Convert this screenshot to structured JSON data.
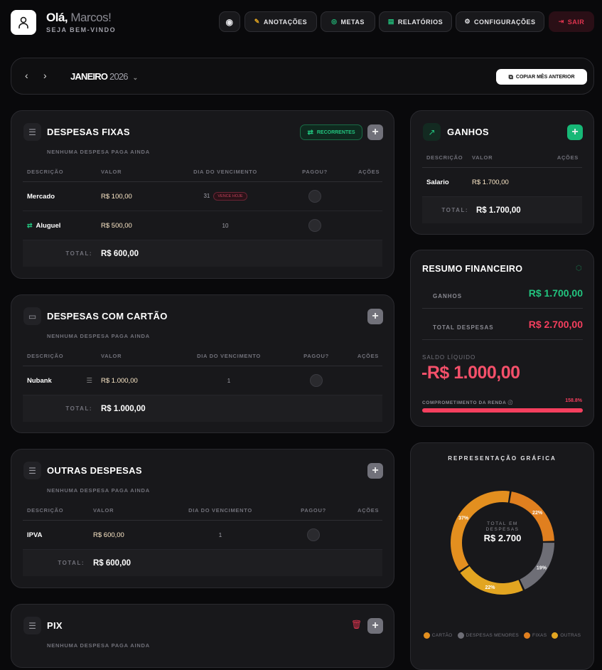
{
  "header": {
    "greeting": "Olá,",
    "name": "Marcos!",
    "welcome": "SEJA BEM-VINDO",
    "nav": [
      {
        "label": "ANOTAÇÕES",
        "icon": "pencil-icon"
      },
      {
        "label": "METAS",
        "icon": "target-icon"
      },
      {
        "label": "RELATÓRIOS",
        "icon": "report-icon"
      },
      {
        "label": "CONFIGURAÇÕES",
        "icon": "gear-icon"
      },
      {
        "label": "SAIR",
        "icon": "logout-icon"
      }
    ]
  },
  "month": {
    "month": "JANEIRO",
    "year": "2026",
    "copy_label": "COPIAR MÊS ANTERIOR"
  },
  "columns": {
    "desc": "DESCRIÇÃO",
    "valor": "VALOR",
    "dia": "DIA DO VENCIMENTO",
    "pagou": "PAGOU?",
    "acoes": "AÇÕES",
    "total": "TOTAL:"
  },
  "fixas": {
    "title": "DESPESAS FIXAS",
    "subtitle": "NENHUMA DESPESA PAGA AINDA",
    "recorrentes": "RECORRENTES",
    "rows": [
      {
        "desc": "Mercado",
        "valor": "R$ 100,00",
        "dia": "31",
        "badge": "VENCE HOJE"
      },
      {
        "desc": "Aluguel",
        "valor": "R$ 500,00",
        "dia": "10"
      }
    ],
    "total": "R$ 600,00"
  },
  "cartao": {
    "title": "DESPESAS COM CARTÃO",
    "subtitle": "NENHUMA DESPESA PAGA AINDA",
    "rows": [
      {
        "desc": "Nubank",
        "valor": "R$ 1.000,00",
        "dia": "1"
      }
    ],
    "total": "R$ 1.000,00"
  },
  "outras": {
    "title": "OUTRAS DESPESAS",
    "subtitle": "NENHUMA DESPESA PAGA AINDA",
    "rows": [
      {
        "desc": "IPVA",
        "valor": "R$ 600,00",
        "dia": "1"
      }
    ],
    "total": "R$ 600,00"
  },
  "pix": {
    "title": "PIX",
    "subtitle": "NENHUMA DESPESA PAGA AINDA"
  },
  "ganhos": {
    "title": "GANHOS",
    "rows": [
      {
        "desc": "Salario",
        "valor": "R$ 1.700,00"
      }
    ],
    "total": "R$ 1.700,00"
  },
  "resumo": {
    "title": "RESUMO FINANCEIRO",
    "ganhos_label": "GANHOS",
    "ganhos": "R$ 1.700,00",
    "despesas_label": "TOTAL DESPESAS",
    "despesas": "R$ 2.700,00",
    "saldo_label": "SALDO LÍQUIDO",
    "saldo": "-R$ 1.000,00",
    "comp_label": "COMPROMETIMENTO DA RENDA",
    "comp": "158.8%",
    "comp_value": 158.8
  },
  "colors": {
    "green": "#22c57f",
    "red": "#f43f5e",
    "fixas": "#e07f1f",
    "menores": "#6e6e76",
    "outras": "#e2a521",
    "cartao": "#e38f1f"
  },
  "chart_data": {
    "type": "pie",
    "title": "REPRESENTAÇÃO GRÁFICA",
    "center_label": "TOTAL EM DESPESAS",
    "center_value": "R$ 2.700",
    "slices": [
      {
        "name": "FIXAS",
        "value": 600,
        "label": "22%",
        "color": "#e07f1f"
      },
      {
        "name": "DESPESAS MENORES",
        "value": 500,
        "label": "19%",
        "color": "#6e6e76"
      },
      {
        "name": "OUTRAS",
        "value": 600,
        "label": "22%",
        "color": "#e2a521"
      },
      {
        "name": "CARTÃO",
        "value": 1000,
        "label": "37%",
        "color": "#e38f1f"
      }
    ],
    "legend": [
      "CARTÃO",
      "DESPESAS MENORES",
      "FIXAS",
      "OUTRAS"
    ],
    "legend_colors": [
      "#e38f1f",
      "#6e6e76",
      "#e07f1f",
      "#e2a521"
    ],
    "legend_position": "bottom"
  }
}
